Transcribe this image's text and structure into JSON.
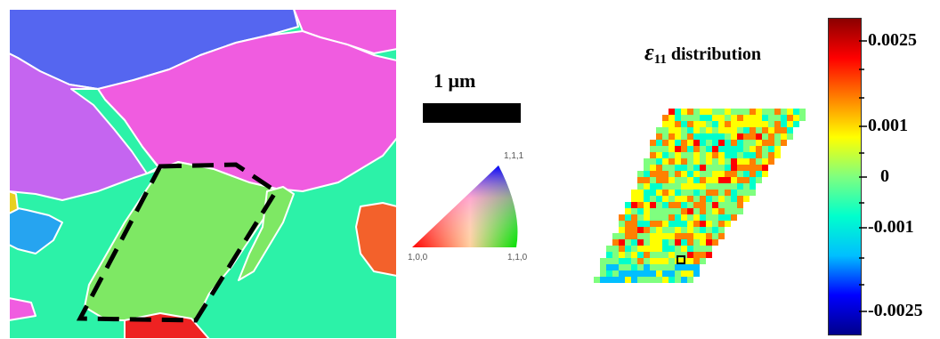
{
  "scale_bar": {
    "label": "1 μm"
  },
  "ipf_key": {
    "corners": {
      "top": "1,1,1",
      "left": "1,0,0",
      "right": "1,1,0"
    }
  },
  "strain_map": {
    "title_symbol": "ε",
    "title_subscript": "11",
    "title_rest": " distribution"
  },
  "colorbar": {
    "ticks": [
      {
        "label": "0.0025",
        "value": 0.0025
      },
      {
        "label": "0.001",
        "value": 0.001
      },
      {
        "label": "0",
        "value": 0
      },
      {
        "label": "-0.001",
        "value": -0.001
      },
      {
        "label": "-0.0025",
        "value": -0.0025
      }
    ],
    "min": -0.003,
    "max": 0.003,
    "colors": [
      "#00008b",
      "#0000ff",
      "#00bfff",
      "#00ffcc",
      "#7fff7f",
      "#ffff00",
      "#ff8000",
      "#ff0000",
      "#8b0000"
    ]
  },
  "colors": {
    "grain_blue": "#5566f0",
    "grain_magenta": "#f05ce0",
    "grain_violet": "#c565f0",
    "grain_teal": "#2cf2a8",
    "grain_green": "#7ee864",
    "grain_aqua": "#26a4f0",
    "grain_orange": "#f3612b",
    "grain_red": "#ee2222",
    "grain_yellow": "#e8d020"
  }
}
